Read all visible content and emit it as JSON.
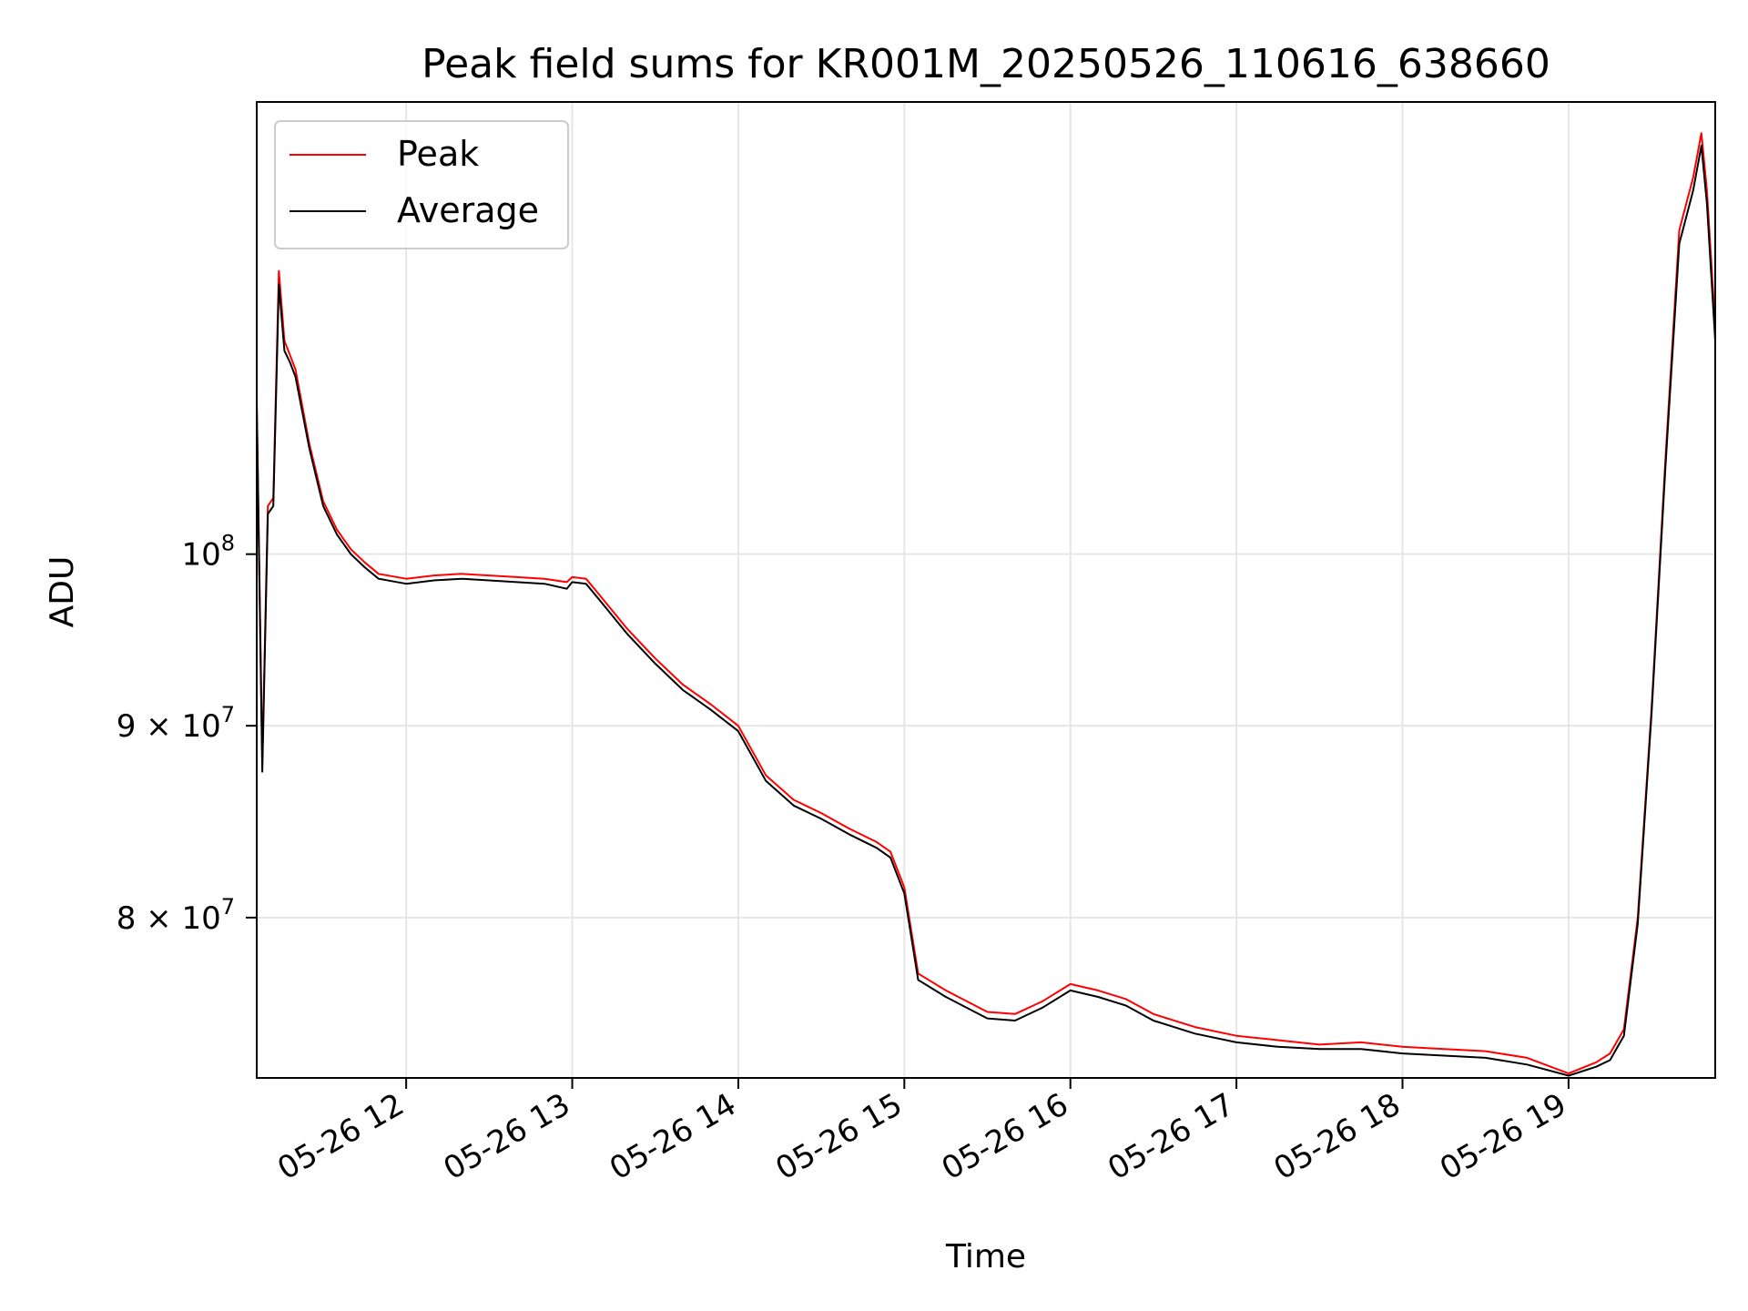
{
  "chart_data": {
    "type": "line",
    "title": "Peak field sums for KR001M_20250526_110616_638660",
    "xlabel": "Time",
    "ylabel": "ADU",
    "yscale": "log",
    "ylim": [
      72500000,
      132000000
    ],
    "xlim": [
      "2025-05-26 11:06",
      "2025-05-26 19:53"
    ],
    "grid": true,
    "legend": "upper left",
    "x_ticks": [
      {
        "value": "2025-05-26 12:00",
        "label": "05-26 12"
      },
      {
        "value": "2025-05-26 13:00",
        "label": "05-26 13"
      },
      {
        "value": "2025-05-26 14:00",
        "label": "05-26 14"
      },
      {
        "value": "2025-05-26 15:00",
        "label": "05-26 15"
      },
      {
        "value": "2025-05-26 16:00",
        "label": "05-26 16"
      },
      {
        "value": "2025-05-26 17:00",
        "label": "05-26 17"
      },
      {
        "value": "2025-05-26 18:00",
        "label": "05-26 18"
      },
      {
        "value": "2025-05-26 19:00",
        "label": "05-26 19"
      }
    ],
    "y_ticks": [
      {
        "value": 100000000,
        "base": "10",
        "exp": "8"
      },
      {
        "value": 90000000,
        "base": "9 × 10",
        "exp": "7"
      },
      {
        "value": 80000000,
        "base": "8 × 10",
        "exp": "7"
      }
    ],
    "x": [
      "2025-05-26 11:06",
      "2025-05-26 11:08",
      "2025-05-26 11:10",
      "2025-05-26 11:12",
      "2025-05-26 11:14",
      "2025-05-26 11:16",
      "2025-05-26 11:18",
      "2025-05-26 11:20",
      "2025-05-26 11:25",
      "2025-05-26 11:30",
      "2025-05-26 11:35",
      "2025-05-26 11:40",
      "2025-05-26 11:45",
      "2025-05-26 11:50",
      "2025-05-26 12:00",
      "2025-05-26 12:10",
      "2025-05-26 12:20",
      "2025-05-26 12:30",
      "2025-05-26 12:40",
      "2025-05-26 12:50",
      "2025-05-26 12:58",
      "2025-05-26 13:00",
      "2025-05-26 13:05",
      "2025-05-26 13:10",
      "2025-05-26 13:20",
      "2025-05-26 13:30",
      "2025-05-26 13:40",
      "2025-05-26 13:50",
      "2025-05-26 14:00",
      "2025-05-26 14:10",
      "2025-05-26 14:20",
      "2025-05-26 14:30",
      "2025-05-26 14:40",
      "2025-05-26 14:50",
      "2025-05-26 14:55",
      "2025-05-26 15:00",
      "2025-05-26 15:05",
      "2025-05-26 15:15",
      "2025-05-26 15:30",
      "2025-05-26 15:40",
      "2025-05-26 15:50",
      "2025-05-26 16:00",
      "2025-05-26 16:10",
      "2025-05-26 16:20",
      "2025-05-26 16:30",
      "2025-05-26 16:45",
      "2025-05-26 17:00",
      "2025-05-26 17:15",
      "2025-05-26 17:30",
      "2025-05-26 17:45",
      "2025-05-26 18:00",
      "2025-05-26 18:15",
      "2025-05-26 18:30",
      "2025-05-26 18:45",
      "2025-05-26 19:00",
      "2025-05-26 19:10",
      "2025-05-26 19:15",
      "2025-05-26 19:20",
      "2025-05-26 19:25",
      "2025-05-26 19:30",
      "2025-05-26 19:35",
      "2025-05-26 19:40",
      "2025-05-26 19:45",
      "2025-05-26 19:48",
      "2025-05-26 19:50",
      "2025-05-26 19:53"
    ],
    "series": [
      {
        "name": "Peak",
        "color": "#ff0000",
        "values": [
          110000000,
          88000000,
          103000000,
          103500000,
          119000000,
          114000000,
          113000000,
          112000000,
          107000000,
          103300000,
          101500000,
          100300000,
          99500000,
          98800000,
          98500000,
          98700000,
          98800000,
          98700000,
          98600000,
          98500000,
          98300000,
          98600000,
          98500000,
          97500000,
          95500000,
          93800000,
          92300000,
          91200000,
          90000000,
          87300000,
          86000000,
          85300000,
          84500000,
          83800000,
          83300000,
          81500000,
          77300000,
          76500000,
          75500000,
          75400000,
          76000000,
          76800000,
          76500000,
          76100000,
          75400000,
          74800000,
          74400000,
          74200000,
          74000000,
          74100000,
          73900000,
          73800000,
          73700000,
          73400000,
          72700000,
          73200000,
          73600000,
          74700000,
          80000000,
          91000000,
          106000000,
          122000000,
          126000000,
          129500000,
          125000000,
          115000000
        ]
      },
      {
        "name": "Average",
        "color": "#000000",
        "values": [
          109500000,
          87500000,
          102500000,
          103000000,
          118000000,
          113300000,
          112500000,
          111500000,
          106700000,
          103000000,
          101200000,
          100000000,
          99200000,
          98500000,
          98200000,
          98400000,
          98500000,
          98400000,
          98300000,
          98200000,
          97900000,
          98300000,
          98200000,
          97200000,
          95200000,
          93500000,
          92000000,
          90900000,
          89700000,
          87000000,
          85700000,
          85000000,
          84200000,
          83500000,
          83000000,
          81200000,
          77000000,
          76200000,
          75200000,
          75100000,
          75700000,
          76500000,
          76200000,
          75800000,
          75100000,
          74500000,
          74100000,
          73900000,
          73800000,
          73800000,
          73600000,
          73500000,
          73400000,
          73100000,
          72600000,
          73000000,
          73300000,
          74400000,
          79700000,
          90700000,
          105500000,
          121000000,
          125000000,
          128500000,
          124000000,
          114000000
        ]
      }
    ]
  }
}
